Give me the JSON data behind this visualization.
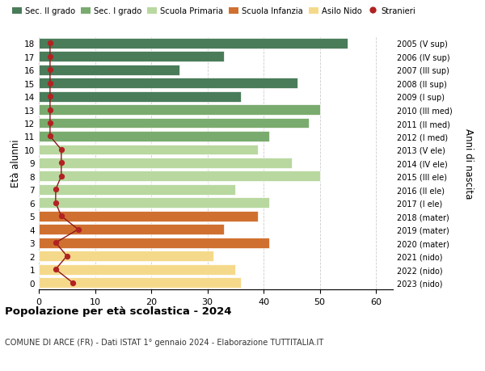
{
  "ages": [
    18,
    17,
    16,
    15,
    14,
    13,
    12,
    11,
    10,
    9,
    8,
    7,
    6,
    5,
    4,
    3,
    2,
    1,
    0
  ],
  "bar_values": [
    55,
    33,
    25,
    46,
    36,
    50,
    48,
    41,
    39,
    45,
    50,
    35,
    41,
    39,
    33,
    41,
    31,
    35,
    36
  ],
  "bar_colors": [
    "#4a7c59",
    "#4a7c59",
    "#4a7c59",
    "#4a7c59",
    "#4a7c59",
    "#7aab6e",
    "#7aab6e",
    "#7aab6e",
    "#b8d8a0",
    "#b8d8a0",
    "#b8d8a0",
    "#b8d8a0",
    "#b8d8a0",
    "#d07030",
    "#d07030",
    "#d07030",
    "#f5d98b",
    "#f5d98b",
    "#f5d98b"
  ],
  "stranieri_values": [
    2,
    2,
    2,
    2,
    2,
    2,
    2,
    2,
    4,
    4,
    4,
    3,
    3,
    4,
    7,
    3,
    5,
    3,
    6
  ],
  "right_labels": [
    "2005 (V sup)",
    "2006 (IV sup)",
    "2007 (III sup)",
    "2008 (II sup)",
    "2009 (I sup)",
    "2010 (III med)",
    "2011 (II med)",
    "2012 (I med)",
    "2013 (V ele)",
    "2014 (IV ele)",
    "2015 (III ele)",
    "2016 (II ele)",
    "2017 (I ele)",
    "2018 (mater)",
    "2019 (mater)",
    "2020 (mater)",
    "2021 (nido)",
    "2022 (nido)",
    "2023 (nido)"
  ],
  "legend_labels": [
    "Sec. II grado",
    "Sec. I grado",
    "Scuola Primaria",
    "Scuola Infanzia",
    "Asilo Nido",
    "Stranieri"
  ],
  "legend_colors": [
    "#4a7c59",
    "#7aab6e",
    "#b8d8a0",
    "#d07030",
    "#f5d98b",
    "#b22222"
  ],
  "ylabel": "Età alunni",
  "ylabel2": "Anni di nascita",
  "title": "Popolazione per età scolastica - 2024",
  "subtitle": "COMUNE DI ARCE (FR) - Dati ISTAT 1° gennaio 2024 - Elaborazione TUTTITALIA.IT",
  "xlim": [
    0,
    63
  ],
  "ylim": [
    -0.5,
    18.5
  ],
  "xticks": [
    0,
    10,
    20,
    30,
    40,
    50,
    60
  ],
  "stranieri_color": "#b22222",
  "line_color": "#8b1a1a",
  "bg_color": "#ffffff",
  "grid_color": "#cccccc"
}
